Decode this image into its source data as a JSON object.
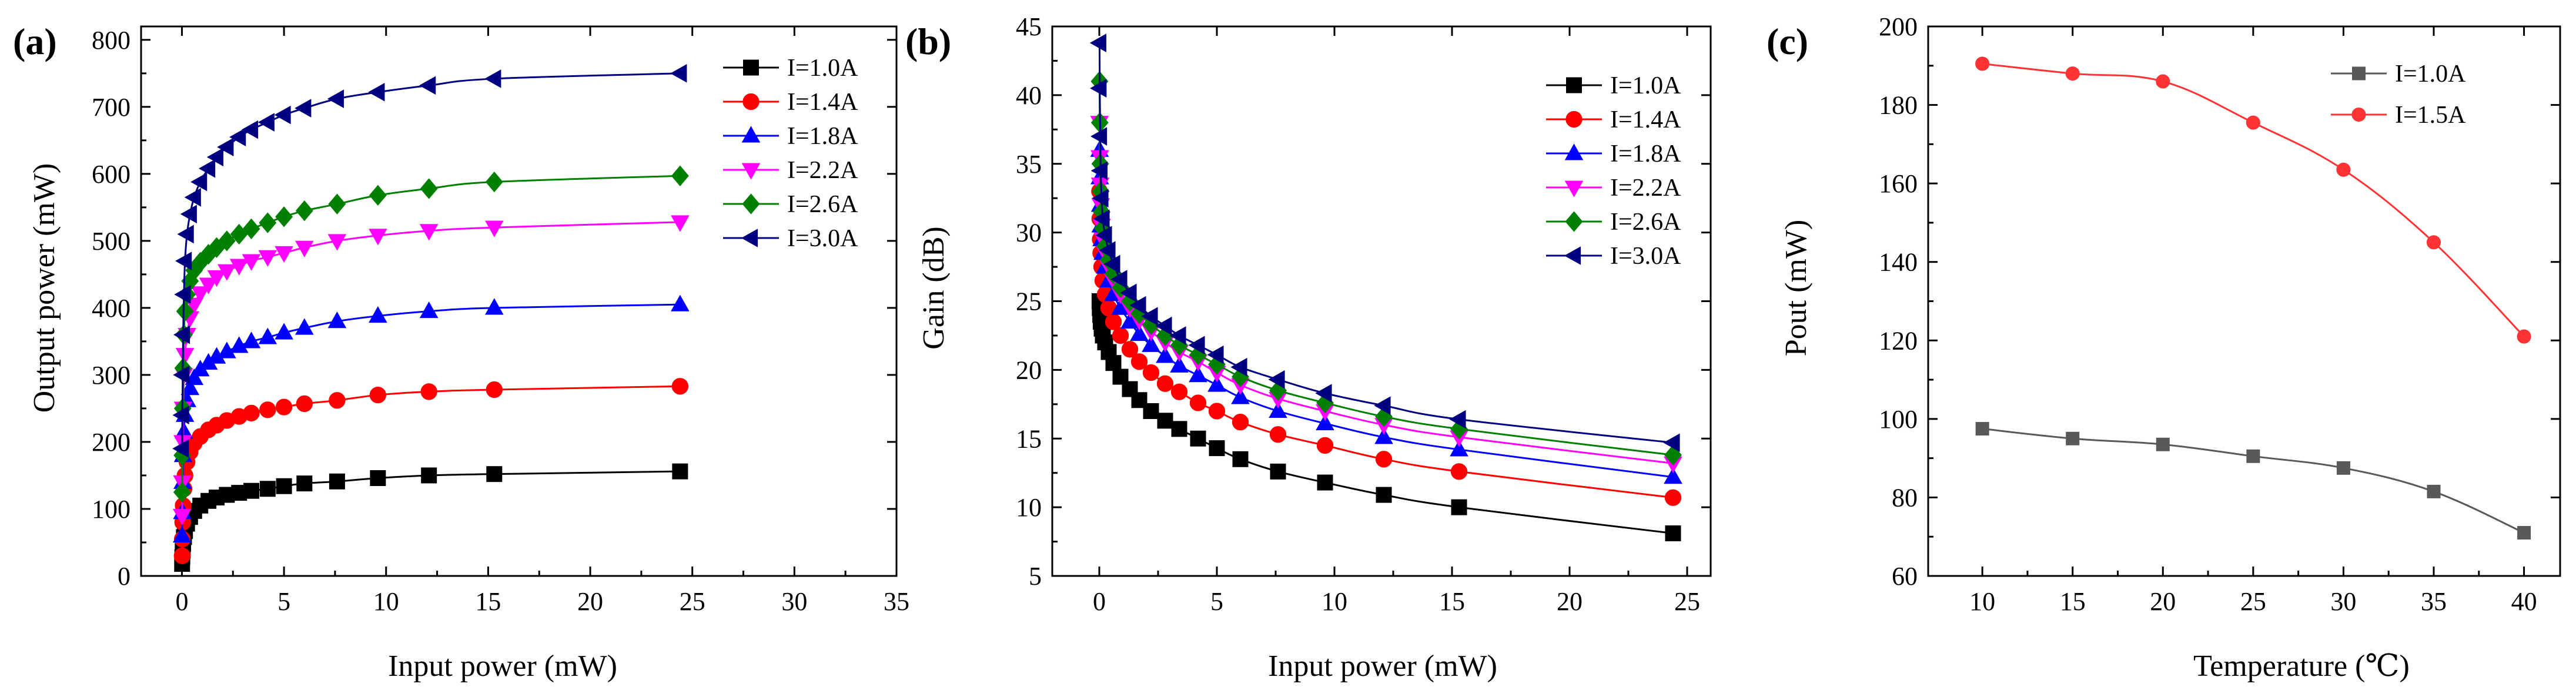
{
  "figure": {
    "panel_labels": [
      "(a)",
      "(b)",
      "(c)"
    ]
  },
  "chart_data": [
    {
      "panel": "(a)",
      "type": "line",
      "title": "",
      "xlabel": "Input power (mW)",
      "ylabel": "Output power (mW)",
      "xlim": [
        -2,
        35
      ],
      "ylim": [
        0,
        820
      ],
      "xticks": [
        0,
        5,
        10,
        15,
        20,
        25,
        30,
        35
      ],
      "yticks": [
        0,
        100,
        200,
        300,
        400,
        500,
        600,
        700,
        800
      ],
      "grid": false,
      "legend_position": "top-right",
      "x": [
        0.01,
        0.02,
        0.04,
        0.06,
        0.1,
        0.15,
        0.25,
        0.4,
        0.6,
        0.9,
        1.3,
        1.7,
        2.2,
        2.8,
        3.4,
        4.2,
        5.0,
        6.0,
        7.6,
        9.6,
        12.1,
        15.3,
        24.4
      ],
      "series": [
        {
          "name": "I=1.0A",
          "color": "#000000",
          "marker": "square",
          "values": [
            18,
            28,
            38,
            48,
            58,
            67,
            78,
            88,
            97,
            105,
            112,
            117,
            121,
            124,
            127,
            130,
            134,
            138,
            141,
            146,
            150,
            152,
            156
          ]
        },
        {
          "name": "I=1.4A",
          "color": "#ff0000",
          "marker": "circle",
          "values": [
            30,
            55,
            80,
            105,
            130,
            150,
            170,
            185,
            198,
            208,
            218,
            225,
            232,
            238,
            243,
            248,
            252,
            257,
            262,
            270,
            275,
            278,
            283
          ]
        },
        {
          "name": "I=1.8A",
          "color": "#0000ff",
          "marker": "triangle-up",
          "values": [
            60,
            95,
            140,
            180,
            215,
            240,
            262,
            280,
            295,
            308,
            318,
            327,
            335,
            343,
            350,
            356,
            363,
            370,
            380,
            388,
            395,
            400,
            405
          ]
        },
        {
          "name": "I=2.2A",
          "color": "#ff00ff",
          "marker": "triangle-down",
          "values": [
            90,
            140,
            200,
            250,
            300,
            330,
            360,
            385,
            405,
            422,
            435,
            446,
            455,
            463,
            470,
            476,
            482,
            490,
            500,
            508,
            515,
            520,
            528
          ]
        },
        {
          "name": "I=2.6A",
          "color": "#008000",
          "marker": "diamond",
          "values": [
            125,
            180,
            250,
            310,
            360,
            395,
            420,
            440,
            456,
            468,
            480,
            490,
            500,
            510,
            518,
            527,
            536,
            545,
            555,
            568,
            578,
            588,
            597
          ]
        },
        {
          "name": "I=3.0A",
          "color": "#000080",
          "marker": "triangle-left",
          "values": [
            190,
            240,
            300,
            360,
            420,
            470,
            510,
            540,
            565,
            588,
            608,
            625,
            640,
            655,
            666,
            677,
            688,
            698,
            712,
            722,
            732,
            742,
            750
          ]
        }
      ]
    },
    {
      "panel": "(b)",
      "type": "line",
      "title": "",
      "xlabel": "Input power (mW)",
      "ylabel": "Gain (dB)",
      "xlim": [
        -2,
        26
      ],
      "ylim": [
        5,
        45
      ],
      "xticks": [
        0,
        5,
        10,
        15,
        20,
        25
      ],
      "yticks": [
        5,
        10,
        15,
        20,
        25,
        30,
        35,
        40,
        45
      ],
      "grid": false,
      "legend_position": "top-right",
      "x": [
        0.01,
        0.02,
        0.04,
        0.06,
        0.1,
        0.15,
        0.25,
        0.4,
        0.6,
        0.9,
        1.3,
        1.7,
        2.2,
        2.8,
        3.4,
        4.2,
        5.0,
        6.0,
        7.6,
        9.6,
        12.1,
        15.3,
        24.4
      ],
      "series": [
        {
          "name": "I=1.0A",
          "color": "#000000",
          "marker": "square",
          "values": [
            25.0,
            24.5,
            24.0,
            23.5,
            23.0,
            22.5,
            22.0,
            21.3,
            20.5,
            19.5,
            18.6,
            17.8,
            17.0,
            16.3,
            15.7,
            15.0,
            14.3,
            13.5,
            12.6,
            11.8,
            10.9,
            10.0,
            8.1
          ]
        },
        {
          "name": "I=1.4A",
          "color": "#ff0000",
          "marker": "circle",
          "values": [
            33.0,
            31.0,
            29.5,
            28.5,
            27.5,
            26.5,
            25.5,
            24.5,
            23.5,
            22.5,
            21.5,
            20.6,
            19.8,
            19.0,
            18.4,
            17.6,
            17.0,
            16.2,
            15.3,
            14.5,
            13.5,
            12.6,
            10.7
          ]
        },
        {
          "name": "I=1.8A",
          "color": "#0000ff",
          "marker": "triangle-up",
          "values": [
            36.0,
            34.0,
            32.0,
            30.5,
            29.5,
            28.5,
            27.5,
            26.5,
            25.5,
            24.5,
            23.5,
            22.6,
            21.8,
            21.0,
            20.3,
            19.6,
            18.9,
            18.0,
            17.0,
            16.1,
            15.1,
            14.2,
            12.2
          ]
        },
        {
          "name": "I=2.2A",
          "color": "#ff00ff",
          "marker": "triangle-down",
          "values": [
            38.0,
            35.5,
            33.5,
            32.0,
            30.5,
            29.5,
            28.5,
            27.5,
            26.5,
            25.5,
            24.5,
            23.6,
            22.8,
            22.0,
            21.3,
            20.6,
            19.8,
            18.9,
            17.9,
            17.0,
            16.0,
            15.1,
            13.2
          ]
        },
        {
          "name": "I=2.6A",
          "color": "#008000",
          "marker": "diamond",
          "values": [
            41.0,
            38.0,
            35.0,
            33.0,
            31.5,
            30.3,
            29.0,
            28.0,
            27.0,
            26.0,
            25.0,
            24.1,
            23.3,
            22.5,
            21.8,
            21.1,
            20.4,
            19.5,
            18.5,
            17.6,
            16.6,
            15.7,
            13.8
          ]
        },
        {
          "name": "I=3.0A",
          "color": "#000080",
          "marker": "triangle-left",
          "values": [
            43.8,
            40.5,
            37.0,
            34.5,
            32.5,
            31.0,
            29.8,
            28.7,
            27.7,
            26.6,
            25.6,
            24.7,
            23.9,
            23.2,
            22.5,
            21.8,
            21.1,
            20.2,
            19.3,
            18.3,
            17.4,
            16.4,
            14.7
          ]
        }
      ]
    },
    {
      "panel": "(c)",
      "type": "line",
      "title": "",
      "xlabel": "Temperature (℃)",
      "ylabel": "Pout (mW)",
      "xlim": [
        7,
        42
      ],
      "ylim": [
        60,
        200
      ],
      "xticks": [
        10,
        15,
        20,
        25,
        30,
        35,
        40
      ],
      "yticks": [
        60,
        80,
        100,
        120,
        140,
        160,
        180,
        200
      ],
      "grid": false,
      "legend_position": "top-right",
      "x": [
        10,
        15,
        20,
        25,
        30,
        35,
        40
      ],
      "series": [
        {
          "name": "I=1.0A",
          "color": "#595959",
          "marker": "square",
          "values": [
            97.5,
            95.0,
            93.5,
            90.5,
            87.5,
            81.5,
            71.0
          ]
        },
        {
          "name": "I=1.5A",
          "color": "#ff3333",
          "marker": "circle",
          "values": [
            190.5,
            188.0,
            186.0,
            175.5,
            163.5,
            145.0,
            121.0
          ]
        }
      ]
    }
  ]
}
